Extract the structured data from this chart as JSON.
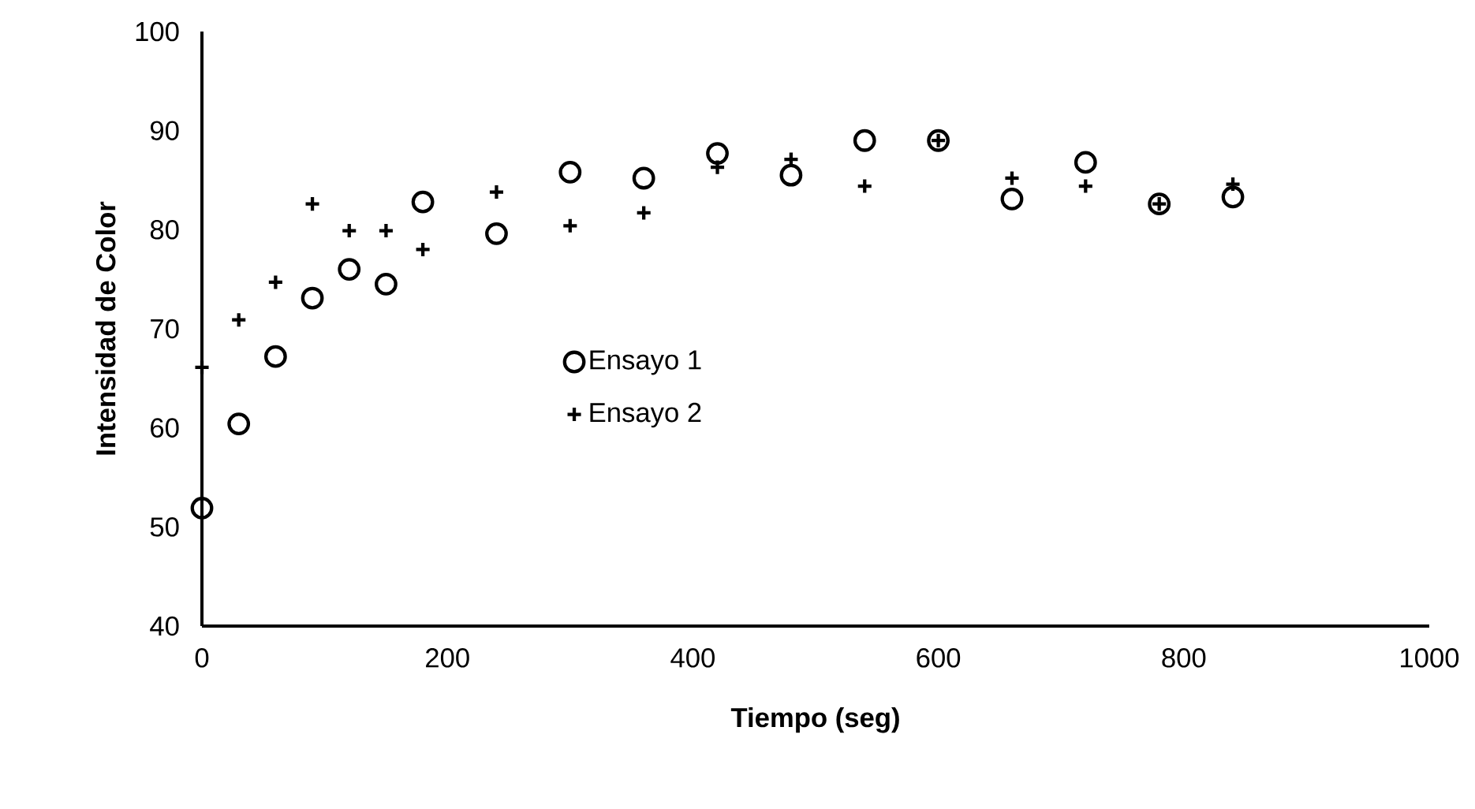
{
  "chart_data": {
    "type": "scatter",
    "xlabel": "Tiempo (seg)",
    "ylabel": "Intensidad de Color",
    "x": [
      0,
      30,
      60,
      90,
      120,
      150,
      180,
      240,
      300,
      360,
      420,
      480,
      540,
      600,
      660,
      720,
      780,
      840
    ],
    "series": [
      {
        "name": "Ensayo 1",
        "color": "#000000",
        "marker": "circle",
        "values": [
          51.9,
          60.4,
          67.2,
          73.1,
          76.0,
          74.5,
          82.8,
          79.6,
          85.8,
          85.2,
          87.7,
          85.5,
          89.0,
          89.0,
          83.1,
          86.8,
          82.6,
          83.3
        ]
      },
      {
        "name": "Ensayo 2",
        "color": "#000000",
        "marker": "cross",
        "values": [
          66.1,
          70.9,
          74.7,
          82.6,
          79.9,
          79.9,
          78.0,
          83.8,
          80.4,
          81.7,
          86.3,
          87.1,
          84.4,
          89.0,
          85.2,
          84.4,
          82.6,
          84.6
        ]
      }
    ],
    "xlim": [
      0,
      1000
    ],
    "ylim": [
      40,
      100
    ],
    "xticks": [
      0,
      200,
      400,
      600,
      800,
      1000
    ],
    "yticks": [
      40,
      50,
      60,
      70,
      80,
      90,
      100
    ],
    "grid": false,
    "legend": "center"
  }
}
